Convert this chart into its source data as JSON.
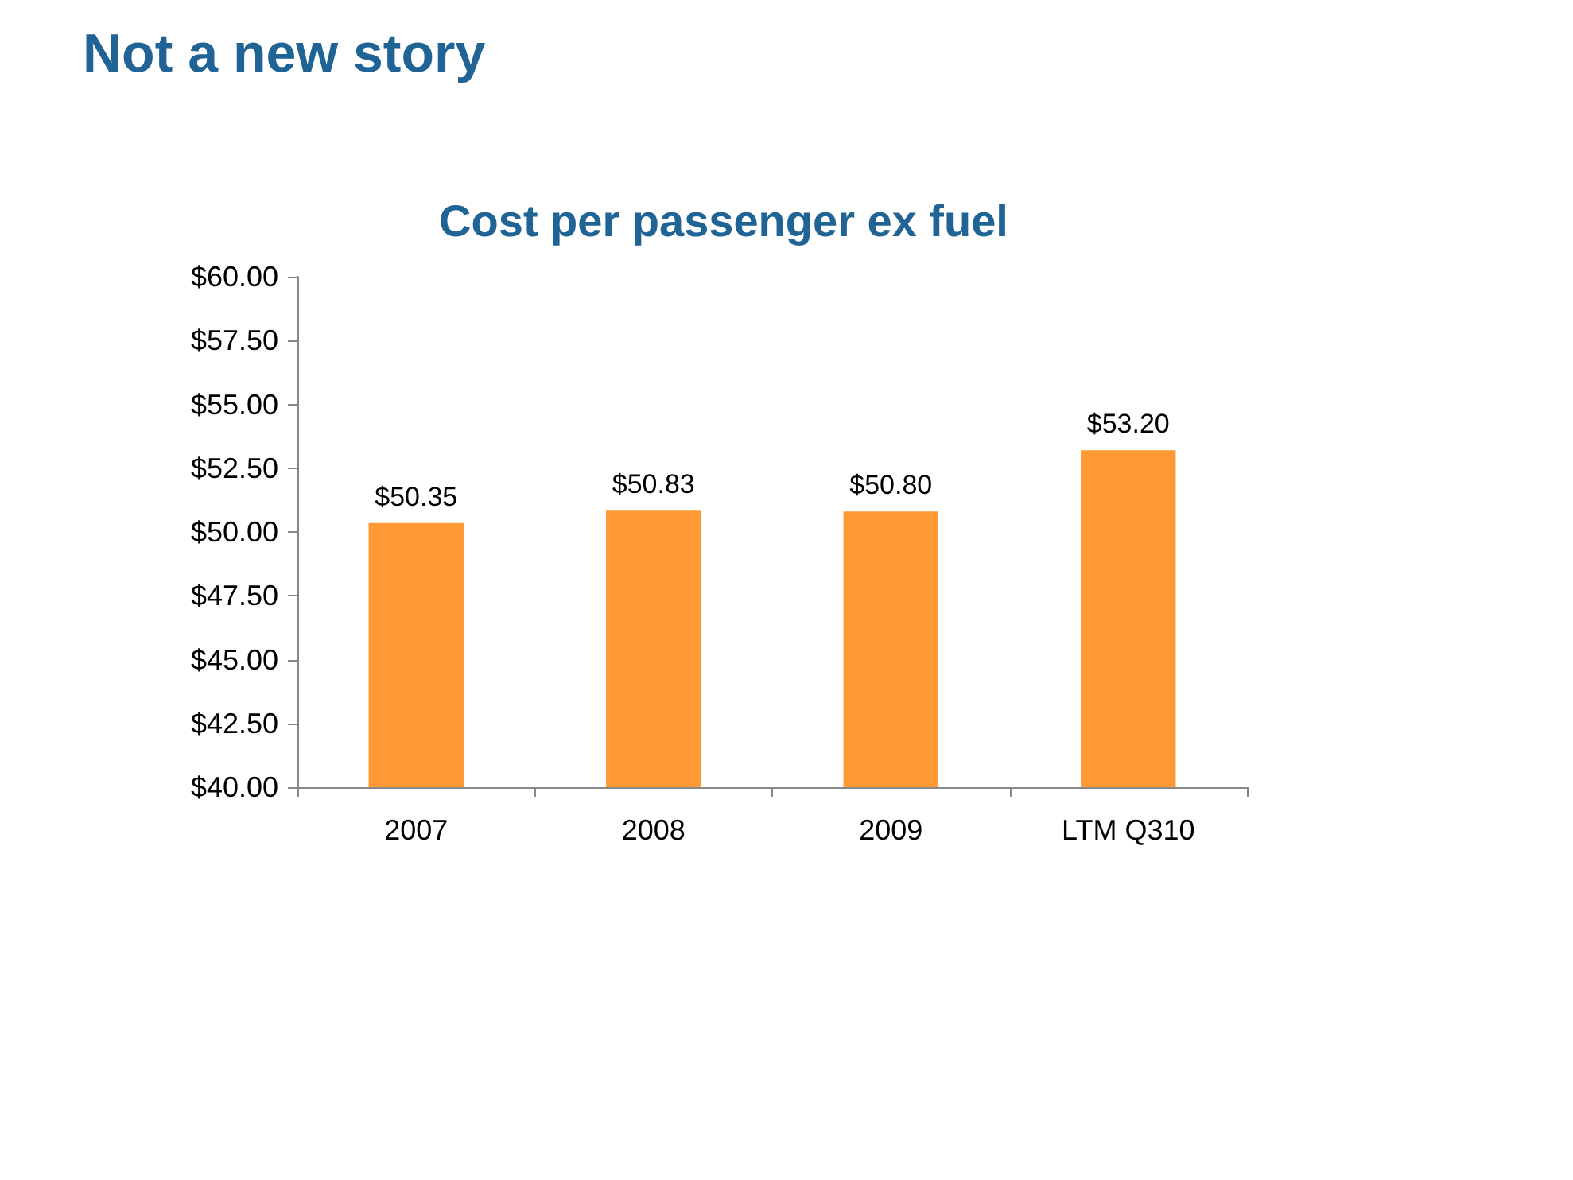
{
  "chart_data": {
    "type": "bar",
    "title": "Not a new story",
    "subtitle": "Cost per passenger ex fuel",
    "categories": [
      "2007",
      "2008",
      "2009",
      "LTM Q310"
    ],
    "values": [
      50.35,
      50.83,
      50.8,
      53.2
    ],
    "value_labels": [
      "$50.35",
      "$50.83",
      "$50.80",
      "$53.20"
    ],
    "color": "#ff9933",
    "ylim": [
      40,
      60
    ],
    "yticks": [
      {
        "value": 40,
        "label": "$40.00"
      },
      {
        "value": 42.5,
        "label": "$42.50"
      },
      {
        "value": 45,
        "label": "$45.00"
      },
      {
        "value": 47.5,
        "label": "$47.50"
      },
      {
        "value": 50,
        "label": "$50.00"
      },
      {
        "value": 52.5,
        "label": "$52.50"
      },
      {
        "value": 55,
        "label": "$55.00"
      },
      {
        "value": 57.5,
        "label": "$57.50"
      },
      {
        "value": 60,
        "label": "$60.00"
      }
    ],
    "grid": false
  }
}
